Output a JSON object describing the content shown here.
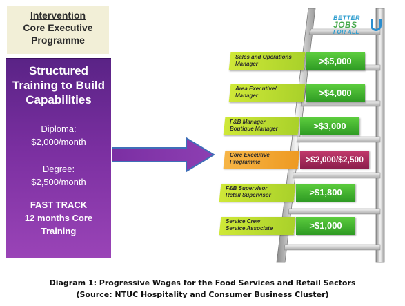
{
  "intervention": {
    "title": "Intervention",
    "line2": "Core Executive",
    "line3": "Programme"
  },
  "training": {
    "title_lines": [
      "Structured",
      "Training to Build",
      "Capabilities"
    ],
    "diploma_label": "Diploma:",
    "diploma_value": "$2,000/month",
    "degree_label": "Degree:",
    "degree_value": "$2,500/month",
    "fast_lines": [
      "FAST TRACK",
      "12 months Core",
      "Training"
    ]
  },
  "logo": {
    "line1": "BETTER",
    "line2": "JOBS",
    "line3": "FOR ALL"
  },
  "ladder": {
    "rungs": [
      {
        "label_lines": [
          "Sales and Operations",
          "Manager"
        ],
        "value": ">$5,000",
        "highlight": false
      },
      {
        "label_lines": [
          "Area Executive/",
          "Manager"
        ],
        "value": ">$4,000",
        "highlight": false
      },
      {
        "label_lines": [
          "F&B Manager",
          "Boutique Manager"
        ],
        "value": ">$3,000",
        "highlight": false
      },
      {
        "label_lines": [
          "Core Executive",
          "Programme"
        ],
        "value": ">$2,000/$2,500",
        "highlight": true
      },
      {
        "label_lines": [
          "F&B Supervisor",
          "Retail Supervisor"
        ],
        "value": ">$1,800",
        "highlight": false
      },
      {
        "label_lines": [
          "Service Crew",
          "Service Associate"
        ],
        "value": ">$1,000",
        "highlight": false
      }
    ]
  },
  "caption": {
    "line1": "Diagram 1: Progressive Wages for the Food Services and Retail Sectors",
    "line2": "(Source: NTUC Hospitality and Consumer Business Cluster)"
  },
  "colors": {
    "purple": "#7a2fa0",
    "green_value": "#3fae2a",
    "lime_label": "#c0de32",
    "highlight_value": "#a02a5c",
    "highlight_label": "#f2a734"
  }
}
